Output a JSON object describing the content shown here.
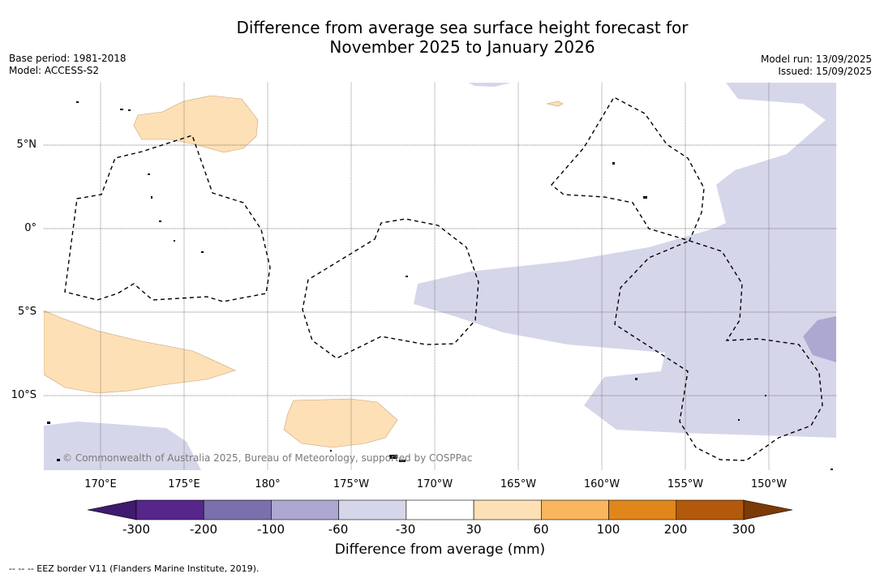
{
  "title_line1": "Difference from average sea surface height forecast for",
  "title_line2": "November 2025 to January 2026",
  "meta_left": [
    "Base period: 1981-2018",
    "Model: ACCESS-S2"
  ],
  "meta_right": [
    "Model run: 13/09/2025",
    "Issued: 15/09/2025"
  ],
  "lat_labels": [
    "5°N",
    "0°",
    "5°S",
    "10°S"
  ],
  "lon_labels": [
    "170°E",
    "175°E",
    "180°",
    "175°W",
    "170°W",
    "165°W",
    "160°W",
    "155°W",
    "150°W"
  ],
  "copyright": "© Commonwealth of Australia 2025, Bureau of Meteorology, supported by COSPPac",
  "colorbar": {
    "ticks": [
      "-300",
      "-200",
      "-100",
      "-60",
      "-30",
      "30",
      "60",
      "100",
      "200",
      "300"
    ],
    "colors": [
      "#3f1a6e",
      "#56268a",
      "#7b6fae",
      "#ada8d2",
      "#d6d6ea",
      "#ffffff",
      "#fde0b5",
      "#f9b65e",
      "#e0861a",
      "#b3590c",
      "#7c3a06"
    ],
    "title": "Difference from average (mm)"
  },
  "footnote": "-- -- -- EEZ border V11 (Flanders Marine Institute, 2019)."
}
